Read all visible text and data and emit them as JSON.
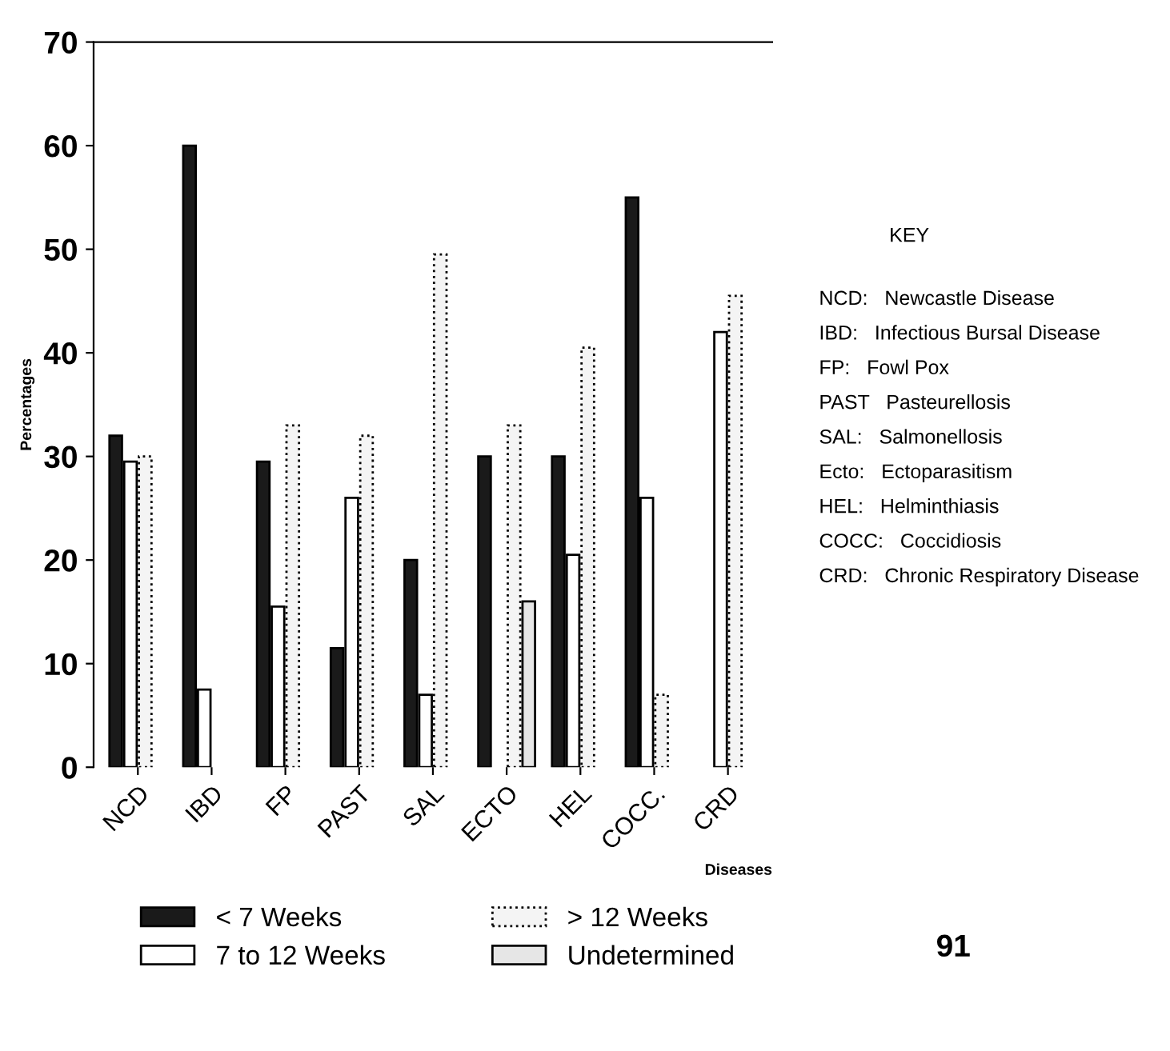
{
  "chart_data": {
    "type": "bar",
    "xlabel": "Diseases",
    "ylabel": "Percentages",
    "categories": [
      "NCD",
      "IBD",
      "FP",
      "PAST",
      "SAL",
      "ECTO",
      "HEL",
      "COCC.",
      "CRD"
    ],
    "series": [
      {
        "name": "< 7 Weeks",
        "color": "#1a1a1a",
        "values": [
          32,
          60,
          29.5,
          11.5,
          20,
          30,
          30,
          55,
          null
        ]
      },
      {
        "name": "7 to 12 Weeks",
        "color": "#ffffff",
        "values": [
          29.5,
          7.5,
          15.5,
          26,
          7,
          null,
          20.5,
          26,
          42
        ]
      },
      {
        "name": "> 12 Weeks",
        "color": "#f4f4f4",
        "line_style": "dotted",
        "values": [
          30,
          null,
          33,
          32,
          49.5,
          33,
          40.5,
          7,
          45.5
        ]
      },
      {
        "name": "Undetermined",
        "color": "#e6e6e6",
        "values": [
          null,
          null,
          null,
          null,
          null,
          16,
          null,
          null,
          null
        ]
      }
    ],
    "ylim": [
      0,
      70
    ],
    "yticks": [
      0,
      10,
      20,
      30,
      40,
      50,
      60,
      70
    ],
    "legend": "bottom",
    "annotations": [
      "KEY",
      "NCD:   Newcastle Disease",
      "IBD:   Infectious Bursal Disease",
      "FP:   Fowl Pox",
      "PAST   Pasteurellosis",
      "SAL:   Salmonellosis",
      "Ecto:   Ectoparasitism",
      "HEL:   Helminthiasis",
      "COCC:   Coccidiosis",
      "CRD:   Chronic Respiratory Disease",
      "91"
    ]
  }
}
